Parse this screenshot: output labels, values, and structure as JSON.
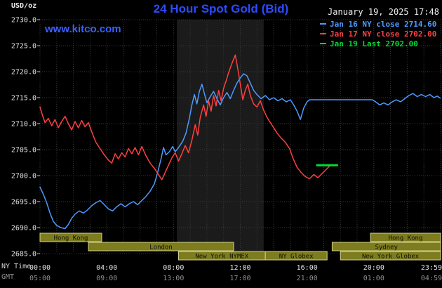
{
  "header": {
    "unit_label": "USD/oz",
    "title": "24 Hour Spot Gold (Bid)",
    "datetime": "January 19, 2025 17:48",
    "watermark": "www.kitco.com"
  },
  "legend": {
    "items": [
      {
        "label": "Jan 16 NY close 2714.60",
        "color": "#4d9aff"
      },
      {
        "label": "Jan 17 NY close 2702.00",
        "color": "#ff4040"
      },
      {
        "label": "Jan 19 Last 2702.00",
        "color": "#00dd33"
      }
    ]
  },
  "axis_captions": {
    "ny_time": "NY Time",
    "gmt": "GMT"
  },
  "colors": {
    "background": "#000000",
    "grid": "#383838",
    "axis_text": "#e2e2e2",
    "gmt_text": "#8f8f8f",
    "title_blue": "#2e4bff",
    "session_bar_fill": "#7d7d1f",
    "session_bar_border": "#d2d28c",
    "session_bar_text": "#10100a"
  },
  "chart_data": {
    "type": "line",
    "title": "24 Hour Spot Gold (Bid)",
    "ylabel": "USD/oz",
    "ylim": [
      2685,
      2730
    ],
    "x_axis": {
      "range_hours": [
        0,
        24
      ],
      "tick_hours": [
        0,
        4,
        8,
        12,
        16,
        20,
        23.98
      ],
      "ticks_ny": [
        "00:00",
        "04:00",
        "08:00",
        "12:00",
        "16:00",
        "20:00",
        "23:59"
      ],
      "ticks_gmt": [
        "05:00",
        "09:00",
        "13:00",
        "17:00",
        "21:00",
        "01:00",
        "04:59"
      ]
    },
    "y_axis": {
      "min": 2685,
      "max": 2730,
      "step": 5,
      "ticks": [
        "2730.0",
        "2725.0",
        "2720.0",
        "2715.0",
        "2710.0",
        "2705.0",
        "2700.0",
        "2695.0",
        "2690.0",
        "2685.0"
      ]
    },
    "session_band": {
      "start_hour": 8.2,
      "end_hour": 13.4,
      "color": "#1b1b1b"
    },
    "series": [
      {
        "id": "jan16",
        "name": "Jan 16 NY close",
        "close": 2714.6,
        "color": "#4d9aff",
        "width": 1.5,
        "points": [
          [
            0,
            2697.8
          ],
          [
            0.2,
            2696.4
          ],
          [
            0.4,
            2694.8
          ],
          [
            0.6,
            2692.8
          ],
          [
            0.8,
            2691.2
          ],
          [
            1,
            2690.4
          ],
          [
            1.25,
            2690
          ],
          [
            1.5,
            2689.8
          ],
          [
            1.7,
            2690.6
          ],
          [
            1.9,
            2691.8
          ],
          [
            2.1,
            2692.6
          ],
          [
            2.35,
            2693.2
          ],
          [
            2.6,
            2692.8
          ],
          [
            2.85,
            2693.4
          ],
          [
            3.1,
            2694.2
          ],
          [
            3.35,
            2694.8
          ],
          [
            3.6,
            2695.2
          ],
          [
            3.85,
            2694.4
          ],
          [
            4.1,
            2693.6
          ],
          [
            4.35,
            2693.2
          ],
          [
            4.6,
            2694
          ],
          [
            4.85,
            2694.6
          ],
          [
            5.1,
            2694
          ],
          [
            5.35,
            2694.6
          ],
          [
            5.6,
            2695
          ],
          [
            5.85,
            2694.4
          ],
          [
            6.1,
            2695.2
          ],
          [
            6.35,
            2696
          ],
          [
            6.6,
            2697
          ],
          [
            6.85,
            2698.4
          ],
          [
            7.05,
            2700.6
          ],
          [
            7.25,
            2703.2
          ],
          [
            7.4,
            2705.4
          ],
          [
            7.55,
            2704
          ],
          [
            7.75,
            2704.6
          ],
          [
            7.95,
            2705.6
          ],
          [
            8.1,
            2704.6
          ],
          [
            8.3,
            2705.4
          ],
          [
            8.55,
            2706.6
          ],
          [
            8.75,
            2708.2
          ],
          [
            8.95,
            2711
          ],
          [
            9.1,
            2713.6
          ],
          [
            9.25,
            2715.6
          ],
          [
            9.4,
            2713.8
          ],
          [
            9.55,
            2716.2
          ],
          [
            9.7,
            2717.6
          ],
          [
            9.85,
            2715.8
          ],
          [
            10,
            2714
          ],
          [
            10.2,
            2715.2
          ],
          [
            10.4,
            2716.2
          ],
          [
            10.6,
            2714.8
          ],
          [
            10.8,
            2713.6
          ],
          [
            11,
            2715
          ],
          [
            11.2,
            2716
          ],
          [
            11.4,
            2714.8
          ],
          [
            11.6,
            2716.4
          ],
          [
            11.8,
            2717.8
          ],
          [
            12,
            2718.8
          ],
          [
            12.2,
            2719.6
          ],
          [
            12.4,
            2719.2
          ],
          [
            12.6,
            2717.8
          ],
          [
            12.8,
            2716.4
          ],
          [
            13,
            2715.6
          ],
          [
            13.25,
            2714.8
          ],
          [
            13.5,
            2715.4
          ],
          [
            13.75,
            2714.6
          ],
          [
            14,
            2715
          ],
          [
            14.25,
            2714.4
          ],
          [
            14.5,
            2714.8
          ],
          [
            14.75,
            2714.2
          ],
          [
            15,
            2714.6
          ],
          [
            15.2,
            2713.6
          ],
          [
            15.4,
            2712.4
          ],
          [
            15.6,
            2710.8
          ],
          [
            15.8,
            2713
          ],
          [
            16,
            2714.2
          ],
          [
            16.15,
            2714.6
          ],
          [
            19.9,
            2714.6
          ],
          [
            20.1,
            2714.2
          ],
          [
            20.35,
            2713.6
          ],
          [
            20.6,
            2714
          ],
          [
            20.85,
            2713.6
          ],
          [
            21.1,
            2714.2
          ],
          [
            21.35,
            2714.6
          ],
          [
            21.6,
            2714.2
          ],
          [
            21.85,
            2714.8
          ],
          [
            22.1,
            2715.4
          ],
          [
            22.35,
            2715.8
          ],
          [
            22.6,
            2715.2
          ],
          [
            22.85,
            2715.6
          ],
          [
            23.1,
            2715.2
          ],
          [
            23.35,
            2715.6
          ],
          [
            23.6,
            2715
          ],
          [
            23.8,
            2715.3
          ],
          [
            23.98,
            2714.9
          ]
        ]
      },
      {
        "id": "jan17",
        "name": "Jan 17 NY close",
        "close": 2702.0,
        "color": "#ff4040",
        "width": 1.5,
        "points": [
          [
            0,
            2713.2
          ],
          [
            0.15,
            2711.6
          ],
          [
            0.3,
            2710.2
          ],
          [
            0.5,
            2711
          ],
          [
            0.7,
            2709.6
          ],
          [
            0.9,
            2710.8
          ],
          [
            1.1,
            2709.2
          ],
          [
            1.3,
            2710.4
          ],
          [
            1.5,
            2711.4
          ],
          [
            1.7,
            2710
          ],
          [
            1.9,
            2708.8
          ],
          [
            2.1,
            2710.4
          ],
          [
            2.3,
            2709.2
          ],
          [
            2.5,
            2710.6
          ],
          [
            2.7,
            2709.4
          ],
          [
            2.9,
            2710.2
          ],
          [
            3.1,
            2708.4
          ],
          [
            3.35,
            2706.4
          ],
          [
            3.6,
            2705.2
          ],
          [
            3.85,
            2704
          ],
          [
            4.1,
            2703
          ],
          [
            4.3,
            2702.4
          ],
          [
            4.5,
            2704.2
          ],
          [
            4.7,
            2703.2
          ],
          [
            4.9,
            2704.4
          ],
          [
            5.1,
            2703.6
          ],
          [
            5.3,
            2705.2
          ],
          [
            5.5,
            2704.2
          ],
          [
            5.7,
            2705.4
          ],
          [
            5.9,
            2704
          ],
          [
            6.1,
            2705.6
          ],
          [
            6.35,
            2703.8
          ],
          [
            6.6,
            2702.4
          ],
          [
            6.85,
            2701.4
          ],
          [
            7.1,
            2700.2
          ],
          [
            7.3,
            2699.2
          ],
          [
            7.5,
            2700.6
          ],
          [
            7.7,
            2702
          ],
          [
            7.9,
            2703.4
          ],
          [
            8.1,
            2704.4
          ],
          [
            8.3,
            2702.8
          ],
          [
            8.5,
            2704.2
          ],
          [
            8.7,
            2705.8
          ],
          [
            8.9,
            2704.4
          ],
          [
            9.1,
            2706.8
          ],
          [
            9.3,
            2709.8
          ],
          [
            9.45,
            2707.8
          ],
          [
            9.6,
            2711.2
          ],
          [
            9.8,
            2713.6
          ],
          [
            9.95,
            2711.4
          ],
          [
            10.1,
            2714.4
          ],
          [
            10.25,
            2712.4
          ],
          [
            10.4,
            2715.4
          ],
          [
            10.55,
            2713.4
          ],
          [
            10.7,
            2716.4
          ],
          [
            10.85,
            2714.4
          ],
          [
            11,
            2716.8
          ],
          [
            11.15,
            2718.2
          ],
          [
            11.3,
            2719.8
          ],
          [
            11.5,
            2721.6
          ],
          [
            11.7,
            2723.2
          ],
          [
            11.85,
            2720.6
          ],
          [
            12,
            2717.6
          ],
          [
            12.15,
            2714.6
          ],
          [
            12.3,
            2716.4
          ],
          [
            12.45,
            2717.6
          ],
          [
            12.6,
            2715.4
          ],
          [
            12.8,
            2713.8
          ],
          [
            13,
            2713.2
          ],
          [
            13.2,
            2714.4
          ],
          [
            13.4,
            2712.6
          ],
          [
            13.6,
            2711.2
          ],
          [
            13.8,
            2710.2
          ],
          [
            14,
            2709.2
          ],
          [
            14.2,
            2708.2
          ],
          [
            14.45,
            2707.2
          ],
          [
            14.7,
            2706.4
          ],
          [
            14.95,
            2705.2
          ],
          [
            15.15,
            2703.4
          ],
          [
            15.4,
            2701.6
          ],
          [
            15.65,
            2700.6
          ],
          [
            15.9,
            2699.8
          ],
          [
            16.15,
            2699.4
          ],
          [
            16.4,
            2700.2
          ],
          [
            16.65,
            2699.6
          ],
          [
            16.9,
            2700.4
          ],
          [
            17.15,
            2701.2
          ],
          [
            17.4,
            2702
          ]
        ]
      },
      {
        "id": "jan19",
        "name": "Jan 19 Last",
        "close": 2702.0,
        "color": "#00dd33",
        "width": 3,
        "points": [
          [
            16.6,
            2702
          ],
          [
            17.8,
            2702
          ]
        ]
      }
    ],
    "market_sessions": [
      {
        "label": "Hong Kong",
        "row": 0,
        "start": 0,
        "end": 3.7
      },
      {
        "label": "Hong Kong",
        "row": 0,
        "start": 19.8,
        "end": 24
      },
      {
        "label": "London",
        "row": 1,
        "start": 2.9,
        "end": 11.6
      },
      {
        "label": "Sydney",
        "row": 1,
        "start": 17.5,
        "end": 24
      },
      {
        "label": "New York NYMEX",
        "row": 2,
        "start": 8.3,
        "end": 13.5
      },
      {
        "label": "NY Globex",
        "row": 2,
        "start": 13.5,
        "end": 17.2
      },
      {
        "label": "New York Globex",
        "row": 2,
        "start": 18,
        "end": 24
      }
    ]
  }
}
